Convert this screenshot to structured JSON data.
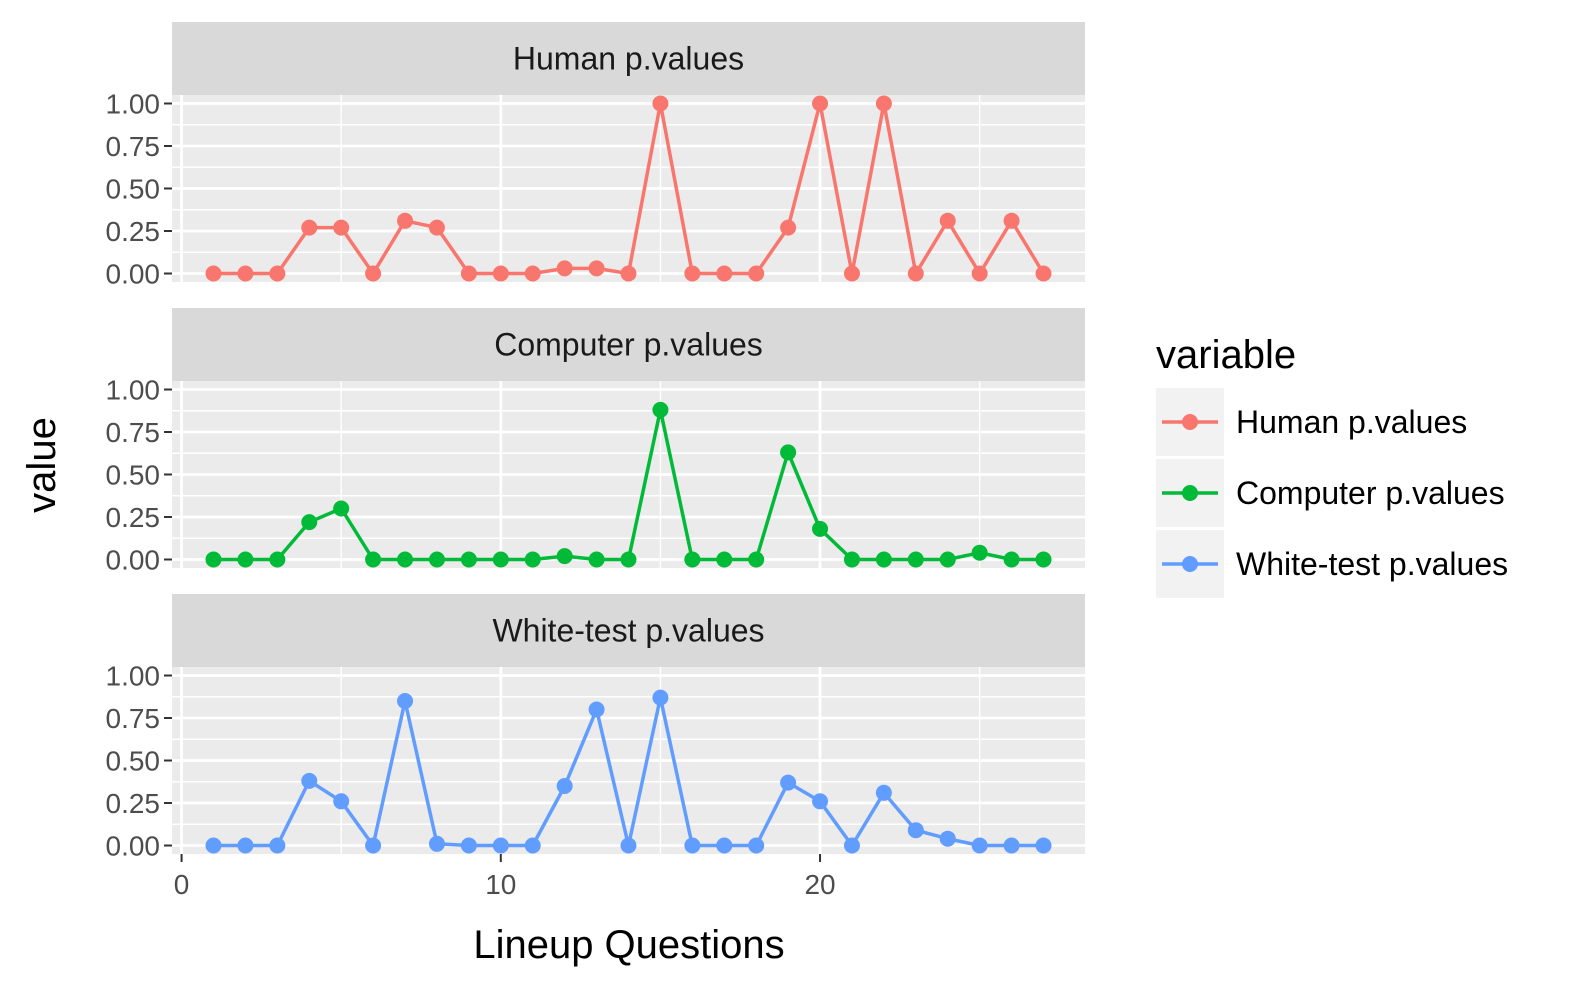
{
  "chart_data": {
    "type": "line",
    "layout": "faceted",
    "xlabel": "Lineup Questions",
    "ylabel": "value",
    "xlim": [
      -0.3,
      28.3
    ],
    "ylim": [
      -0.05,
      1.05
    ],
    "x_ticks": [
      0,
      10,
      20
    ],
    "y_ticks": [
      0,
      0.25,
      0.5,
      0.75,
      1.0
    ],
    "y_tick_labels": [
      "0.00",
      "0.25",
      "0.50",
      "0.75",
      "1.00"
    ],
    "grid": true,
    "legend": {
      "title": "variable",
      "position": "right"
    },
    "x": [
      1,
      2,
      3,
      4,
      5,
      6,
      7,
      8,
      9,
      10,
      11,
      12,
      13,
      14,
      15,
      16,
      17,
      18,
      19,
      20,
      21,
      22,
      23,
      24,
      25,
      26,
      27
    ],
    "series": [
      {
        "name": "Human p.values",
        "color": "#F8766D",
        "values": [
          0,
          0,
          0,
          0.27,
          0.27,
          0,
          0.31,
          0.27,
          0,
          0,
          0,
          0.03,
          0.03,
          0,
          1.0,
          0,
          0,
          0,
          0.27,
          1.0,
          0,
          1.0,
          0,
          0.31,
          0,
          0.31,
          0
        ]
      },
      {
        "name": "Computer p.values",
        "color": "#00BA38",
        "values": [
          0,
          0,
          0,
          0.22,
          0.3,
          0,
          0,
          0,
          0,
          0,
          0,
          0.02,
          0,
          0,
          0.88,
          0,
          0,
          0,
          0.63,
          0.18,
          0,
          0,
          0,
          0,
          0.04,
          0,
          0
        ]
      },
      {
        "name": "White-test p.values",
        "color": "#619CFF",
        "values": [
          0,
          0,
          0,
          0.38,
          0.26,
          0,
          0.85,
          0.01,
          0,
          0,
          0,
          0.35,
          0.8,
          0,
          0.87,
          0,
          0,
          0,
          0.37,
          0.26,
          0,
          0.31,
          0.09,
          0.04,
          0,
          0,
          0
        ]
      }
    ]
  }
}
